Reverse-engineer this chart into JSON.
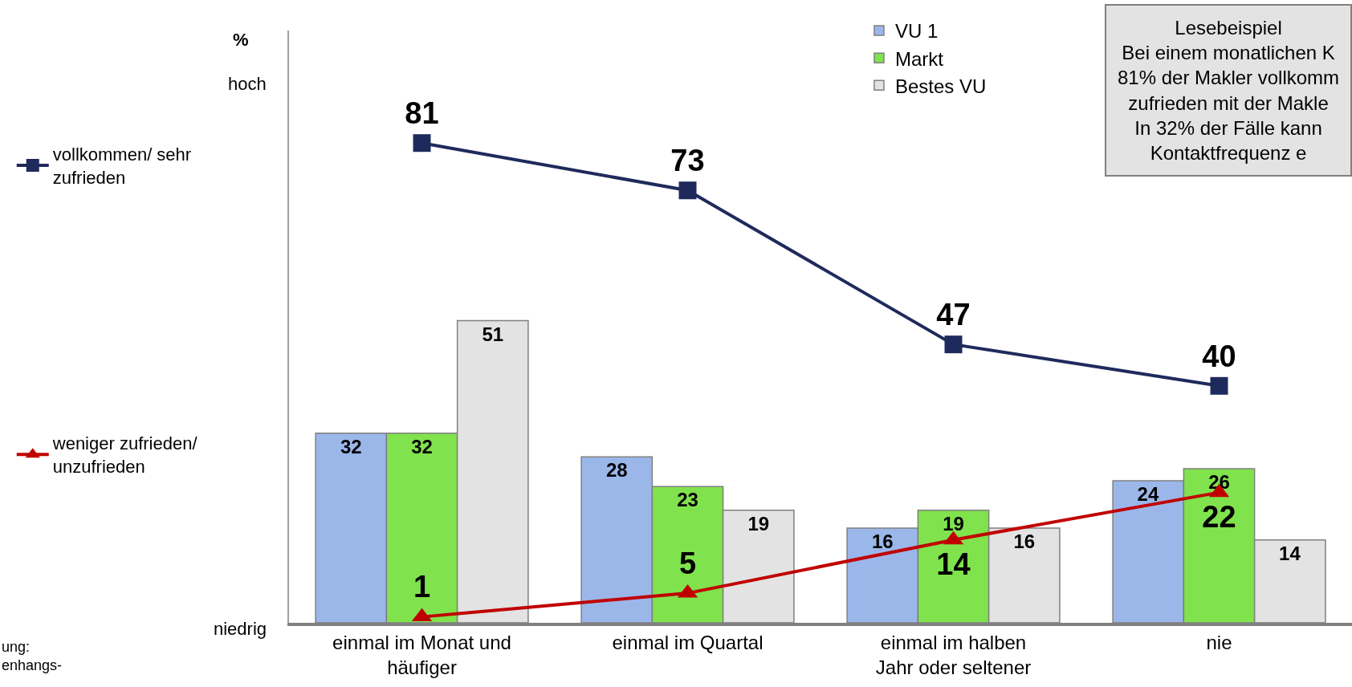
{
  "chart_data": {
    "type": "bar",
    "ylabel": "%",
    "categories": [
      "einmal im Monat und\nhäufiger",
      "einmal im Quartal",
      "einmal im halben\nJahr oder seltener",
      "nie"
    ],
    "series": [
      {
        "name": "VU 1",
        "color": "#9bb7ea",
        "values": [
          32,
          28,
          16,
          24
        ]
      },
      {
        "name": "Markt",
        "color": "#80e24d",
        "values": [
          32,
          23,
          19,
          26
        ]
      },
      {
        "name": "Bestes VU",
        "color": "#e3e3e3",
        "values": [
          51,
          19,
          16,
          14
        ]
      },
      {
        "name": "vollkommen/ sehr\nzufrieden",
        "type": "line",
        "color": "#1f2a5c",
        "marker": "square",
        "values": [
          81,
          73,
          47,
          40
        ]
      },
      {
        "name": "weniger zufrieden/\nunzufrieden",
        "type": "line",
        "color": "#c00000",
        "marker": "triangle",
        "values": [
          1,
          5,
          14,
          22
        ]
      }
    ],
    "ylim": [
      0,
      100
    ],
    "data_labels": true,
    "legend": "top left",
    "annotations": [
      "Lesebeispiel\nBei einem monatlichen K\n81% der Makler vollkomm\nzufrieden mit der Makle\nIn 32% der Fälle kann\nKontaktfrequenz e",
      "ung:\nenhangs-",
      "hoch",
      "niedrig"
    ]
  }
}
